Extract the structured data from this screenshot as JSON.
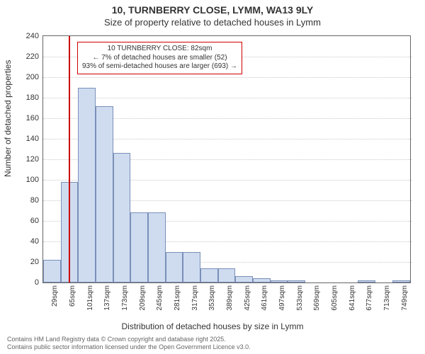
{
  "title": "10, TURNBERRY CLOSE, LYMM, WA13 9LY",
  "subtitle": "Size of property relative to detached houses in Lymm",
  "ylabel": "Number of detached properties",
  "xlabel": "Distribution of detached houses by size in Lymm",
  "chart": {
    "type": "histogram",
    "background_color": "#ffffff",
    "bar_fill": "#cfdcf0",
    "bar_stroke": "#7a8fb8",
    "grid_color": "#c9c9c9",
    "border_color": "#666666",
    "marker_color": "#cc0000",
    "ylim": [
      0,
      240
    ],
    "ytick_step": 20,
    "x_start": 29,
    "x_step": 36,
    "x_unit": "sqm",
    "num_bars": 21,
    "values": [
      22,
      98,
      190,
      172,
      126,
      68,
      68,
      30,
      30,
      14,
      14,
      6,
      4,
      2,
      2,
      0,
      0,
      0,
      2,
      0,
      2
    ],
    "marker_sqm": 82,
    "annotation": {
      "line1": "10 TURNBERRY CLOSE: 82sqm",
      "line2": "← 7% of detached houses are smaller (52)",
      "line3": "93% of semi-detached houses are larger (693) →"
    }
  },
  "footer_line1": "Contains HM Land Registry data © Crown copyright and database right 2025.",
  "footer_line2": "Contains public sector information licensed under the Open Government Licence v3.0."
}
